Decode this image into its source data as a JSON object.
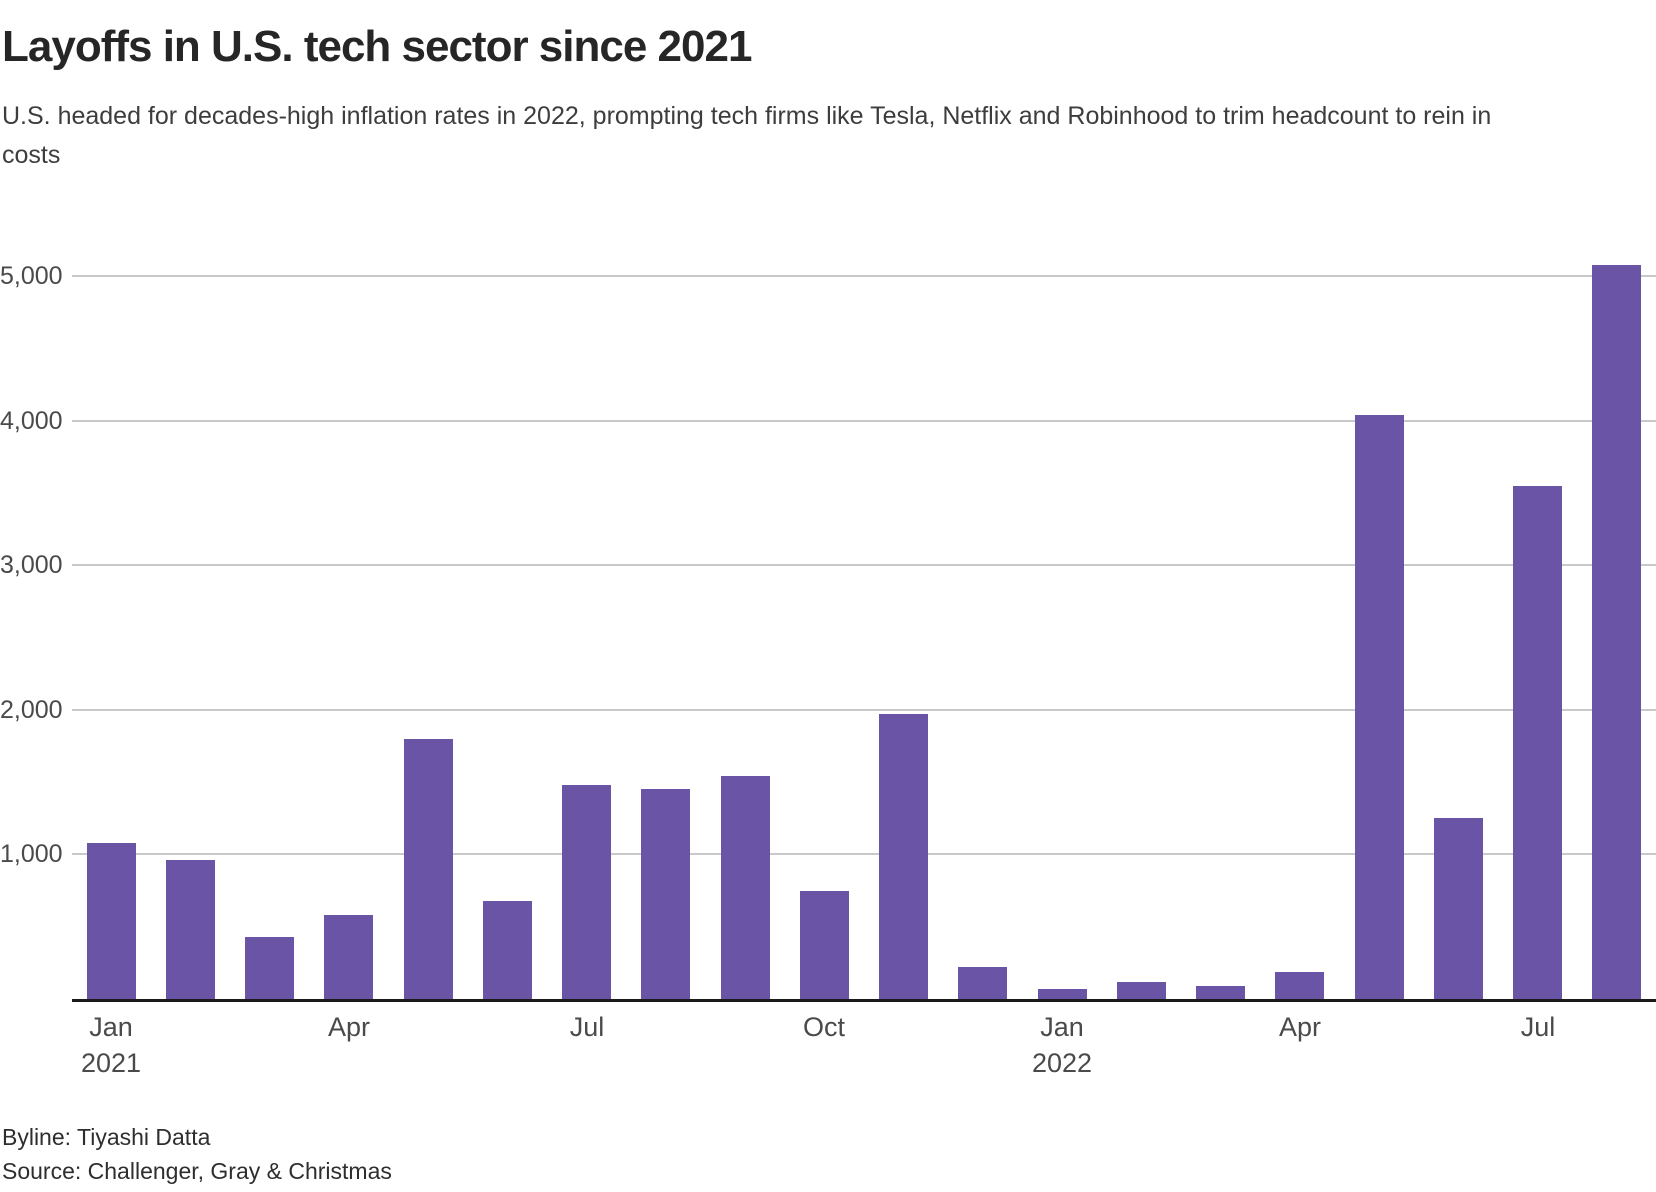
{
  "header": {
    "title": "Layoffs in U.S. tech sector since 2021",
    "subtitle": "U.S. headed for decades-high inflation rates in 2022, prompting tech firms like Tesla, Netflix and Robinhood to trim headcount to rein in costs"
  },
  "footer": {
    "byline": "Byline: Tiyashi Datta",
    "source": "Source: Challenger, Gray & Christmas"
  },
  "colors": {
    "bar": "#6a54a5",
    "grid": "#c9c9c9",
    "axis": "#1a1a1a",
    "title_text": "#262626",
    "subtitle_text": "#3d3d3d",
    "tick_text": "#4a4a4a"
  },
  "chart_data": {
    "type": "bar",
    "title": "Layoffs in U.S. tech sector since 2021",
    "xlabel": "",
    "ylabel": "",
    "categories": [
      "Jan 2021",
      "Feb 2021",
      "Mar 2021",
      "Apr 2021",
      "May 2021",
      "Jun 2021",
      "Jul 2021",
      "Aug 2021",
      "Sep 2021",
      "Oct 2021",
      "Nov 2021",
      "Dec 2021",
      "Jan 2022",
      "Feb 2022",
      "Mar 2022",
      "Apr 2022",
      "May 2022",
      "Jun 2022",
      "Jul 2022",
      "Aug 2022"
    ],
    "values": [
      1080,
      960,
      430,
      580,
      1800,
      680,
      1480,
      1450,
      1540,
      750,
      1970,
      220,
      70,
      115,
      90,
      190,
      4040,
      1250,
      3550,
      5080
    ],
    "ylim": [
      0,
      5320
    ],
    "yticks": [
      {
        "value": 1000,
        "label": "1,000"
      },
      {
        "value": 2000,
        "label": "2,000"
      },
      {
        "value": 3000,
        "label": "3,000"
      },
      {
        "value": 4000,
        "label": "4,000"
      },
      {
        "value": 5000,
        "label": "5,000"
      }
    ],
    "xticks": [
      {
        "index": 0,
        "label": "Jan",
        "year": "2021"
      },
      {
        "index": 3,
        "label": "Apr",
        "year": ""
      },
      {
        "index": 6,
        "label": "Jul",
        "year": ""
      },
      {
        "index": 9,
        "label": "Oct",
        "year": ""
      },
      {
        "index": 12,
        "label": "Jan",
        "year": "2022"
      },
      {
        "index": 15,
        "label": "Apr",
        "year": ""
      },
      {
        "index": 18,
        "label": "Jul",
        "year": ""
      }
    ],
    "grid": true,
    "legend": false
  }
}
